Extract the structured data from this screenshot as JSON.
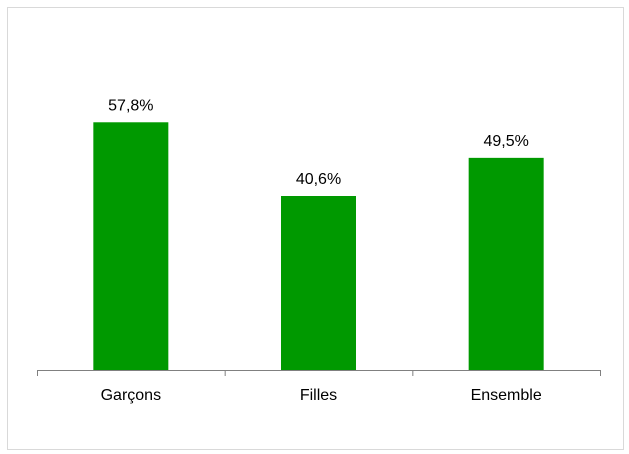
{
  "chart_data": {
    "type": "bar",
    "categories": [
      "Garçons",
      "Filles",
      "Ensemble"
    ],
    "values": [
      57.8,
      40.6,
      49.5
    ],
    "data_labels": [
      "57,8%",
      "40,6%",
      "49,5%"
    ],
    "title": "",
    "xlabel": "",
    "ylabel": "",
    "ylim": [
      0,
      70
    ],
    "y_axis_visible": false,
    "grid": false,
    "legend": "none",
    "bar_color": "#009900",
    "axis_color": "#808080",
    "frame_color": "#d9d9d9"
  }
}
